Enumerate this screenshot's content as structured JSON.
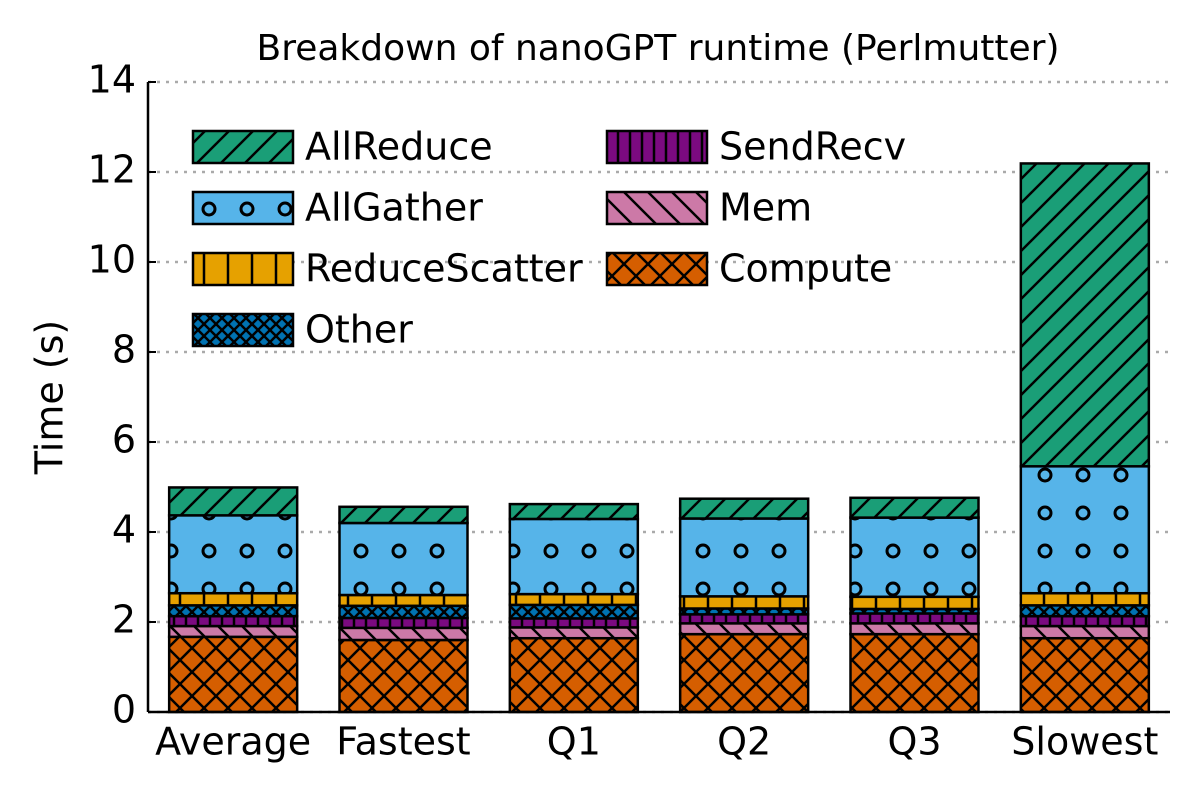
{
  "chart_data": {
    "type": "stacked-bar",
    "title": "Breakdown of nanoGPT runtime (Perlmutter)",
    "y_label": "Time (s)",
    "categories": [
      "Average",
      "Fastest",
      "Q1",
      "Q2",
      "Q3",
      "Slowest"
    ],
    "series": [
      {
        "name": "Compute",
        "color": "#d55e00",
        "hatch": "x",
        "values": [
          1.67,
          1.6,
          1.64,
          1.73,
          1.73,
          1.64
        ]
      },
      {
        "name": "Mem",
        "color": "#cc79a7",
        "hatch": "\\",
        "values": [
          0.24,
          0.27,
          0.24,
          0.24,
          0.24,
          0.27
        ]
      },
      {
        "name": "SendRecv",
        "color": "#7b0a80",
        "hatch": "||",
        "values": [
          0.22,
          0.22,
          0.2,
          0.2,
          0.22,
          0.22
        ]
      },
      {
        "name": "Other",
        "color": "#0072b2",
        "hatch": "xx",
        "values": [
          0.24,
          0.27,
          0.3,
          0.13,
          0.1,
          0.24
        ]
      },
      {
        "name": "ReduceScatter",
        "color": "#e6a100",
        "hatch": "|",
        "values": [
          0.27,
          0.24,
          0.24,
          0.27,
          0.27,
          0.27
        ]
      },
      {
        "name": "AllGather",
        "color": "#56b4e9",
        "hatch": "o",
        "values": [
          1.73,
          1.6,
          1.67,
          1.73,
          1.76,
          2.82
        ]
      },
      {
        "name": "AllReduce",
        "color": "#1a9e77",
        "hatch": "/",
        "values": [
          0.62,
          0.36,
          0.33,
          0.44,
          0.44,
          6.73
        ]
      }
    ],
    "ylim": [
      0,
      14
    ],
    "yticks": [
      0,
      2,
      4,
      6,
      8,
      10,
      12,
      14
    ],
    "grid": true,
    "legend": "upper left"
  }
}
